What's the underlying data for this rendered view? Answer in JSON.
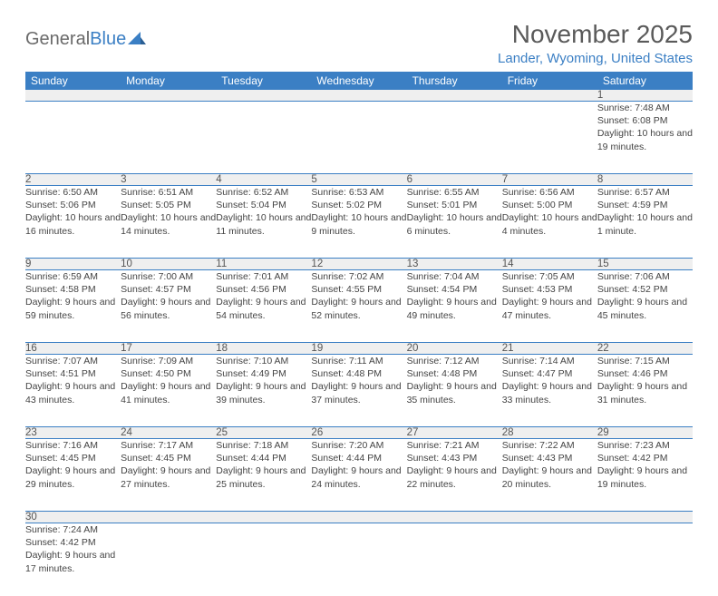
{
  "logo": {
    "part1": "General",
    "part2": "Blue"
  },
  "colors": {
    "header_bg": "#3b7fc4",
    "header_text": "#ffffff",
    "daynum_bg": "#efefef",
    "divider": "#3b7fc4",
    "location": "#3b7fc4",
    "title": "#5a5a5a"
  },
  "title": "November 2025",
  "location": "Lander, Wyoming, United States",
  "day_headers": [
    "Sunday",
    "Monday",
    "Tuesday",
    "Wednesday",
    "Thursday",
    "Friday",
    "Saturday"
  ],
  "weeks": [
    {
      "nums": [
        "",
        "",
        "",
        "",
        "",
        "",
        "1"
      ],
      "cells": [
        null,
        null,
        null,
        null,
        null,
        null,
        {
          "sunrise": "Sunrise: 7:48 AM",
          "sunset": "Sunset: 6:08 PM",
          "daylight": "Daylight: 10 hours and 19 minutes."
        }
      ]
    },
    {
      "nums": [
        "2",
        "3",
        "4",
        "5",
        "6",
        "7",
        "8"
      ],
      "cells": [
        {
          "sunrise": "Sunrise: 6:50 AM",
          "sunset": "Sunset: 5:06 PM",
          "daylight": "Daylight: 10 hours and 16 minutes."
        },
        {
          "sunrise": "Sunrise: 6:51 AM",
          "sunset": "Sunset: 5:05 PM",
          "daylight": "Daylight: 10 hours and 14 minutes."
        },
        {
          "sunrise": "Sunrise: 6:52 AM",
          "sunset": "Sunset: 5:04 PM",
          "daylight": "Daylight: 10 hours and 11 minutes."
        },
        {
          "sunrise": "Sunrise: 6:53 AM",
          "sunset": "Sunset: 5:02 PM",
          "daylight": "Daylight: 10 hours and 9 minutes."
        },
        {
          "sunrise": "Sunrise: 6:55 AM",
          "sunset": "Sunset: 5:01 PM",
          "daylight": "Daylight: 10 hours and 6 minutes."
        },
        {
          "sunrise": "Sunrise: 6:56 AM",
          "sunset": "Sunset: 5:00 PM",
          "daylight": "Daylight: 10 hours and 4 minutes."
        },
        {
          "sunrise": "Sunrise: 6:57 AM",
          "sunset": "Sunset: 4:59 PM",
          "daylight": "Daylight: 10 hours and 1 minute."
        }
      ]
    },
    {
      "nums": [
        "9",
        "10",
        "11",
        "12",
        "13",
        "14",
        "15"
      ],
      "cells": [
        {
          "sunrise": "Sunrise: 6:59 AM",
          "sunset": "Sunset: 4:58 PM",
          "daylight": "Daylight: 9 hours and 59 minutes."
        },
        {
          "sunrise": "Sunrise: 7:00 AM",
          "sunset": "Sunset: 4:57 PM",
          "daylight": "Daylight: 9 hours and 56 minutes."
        },
        {
          "sunrise": "Sunrise: 7:01 AM",
          "sunset": "Sunset: 4:56 PM",
          "daylight": "Daylight: 9 hours and 54 minutes."
        },
        {
          "sunrise": "Sunrise: 7:02 AM",
          "sunset": "Sunset: 4:55 PM",
          "daylight": "Daylight: 9 hours and 52 minutes."
        },
        {
          "sunrise": "Sunrise: 7:04 AM",
          "sunset": "Sunset: 4:54 PM",
          "daylight": "Daylight: 9 hours and 49 minutes."
        },
        {
          "sunrise": "Sunrise: 7:05 AM",
          "sunset": "Sunset: 4:53 PM",
          "daylight": "Daylight: 9 hours and 47 minutes."
        },
        {
          "sunrise": "Sunrise: 7:06 AM",
          "sunset": "Sunset: 4:52 PM",
          "daylight": "Daylight: 9 hours and 45 minutes."
        }
      ]
    },
    {
      "nums": [
        "16",
        "17",
        "18",
        "19",
        "20",
        "21",
        "22"
      ],
      "cells": [
        {
          "sunrise": "Sunrise: 7:07 AM",
          "sunset": "Sunset: 4:51 PM",
          "daylight": "Daylight: 9 hours and 43 minutes."
        },
        {
          "sunrise": "Sunrise: 7:09 AM",
          "sunset": "Sunset: 4:50 PM",
          "daylight": "Daylight: 9 hours and 41 minutes."
        },
        {
          "sunrise": "Sunrise: 7:10 AM",
          "sunset": "Sunset: 4:49 PM",
          "daylight": "Daylight: 9 hours and 39 minutes."
        },
        {
          "sunrise": "Sunrise: 7:11 AM",
          "sunset": "Sunset: 4:48 PM",
          "daylight": "Daylight: 9 hours and 37 minutes."
        },
        {
          "sunrise": "Sunrise: 7:12 AM",
          "sunset": "Sunset: 4:48 PM",
          "daylight": "Daylight: 9 hours and 35 minutes."
        },
        {
          "sunrise": "Sunrise: 7:14 AM",
          "sunset": "Sunset: 4:47 PM",
          "daylight": "Daylight: 9 hours and 33 minutes."
        },
        {
          "sunrise": "Sunrise: 7:15 AM",
          "sunset": "Sunset: 4:46 PM",
          "daylight": "Daylight: 9 hours and 31 minutes."
        }
      ]
    },
    {
      "nums": [
        "23",
        "24",
        "25",
        "26",
        "27",
        "28",
        "29"
      ],
      "cells": [
        {
          "sunrise": "Sunrise: 7:16 AM",
          "sunset": "Sunset: 4:45 PM",
          "daylight": "Daylight: 9 hours and 29 minutes."
        },
        {
          "sunrise": "Sunrise: 7:17 AM",
          "sunset": "Sunset: 4:45 PM",
          "daylight": "Daylight: 9 hours and 27 minutes."
        },
        {
          "sunrise": "Sunrise: 7:18 AM",
          "sunset": "Sunset: 4:44 PM",
          "daylight": "Daylight: 9 hours and 25 minutes."
        },
        {
          "sunrise": "Sunrise: 7:20 AM",
          "sunset": "Sunset: 4:44 PM",
          "daylight": "Daylight: 9 hours and 24 minutes."
        },
        {
          "sunrise": "Sunrise: 7:21 AM",
          "sunset": "Sunset: 4:43 PM",
          "daylight": "Daylight: 9 hours and 22 minutes."
        },
        {
          "sunrise": "Sunrise: 7:22 AM",
          "sunset": "Sunset: 4:43 PM",
          "daylight": "Daylight: 9 hours and 20 minutes."
        },
        {
          "sunrise": "Sunrise: 7:23 AM",
          "sunset": "Sunset: 4:42 PM",
          "daylight": "Daylight: 9 hours and 19 minutes."
        }
      ]
    },
    {
      "nums": [
        "30",
        "",
        "",
        "",
        "",
        "",
        ""
      ],
      "cells": [
        {
          "sunrise": "Sunrise: 7:24 AM",
          "sunset": "Sunset: 4:42 PM",
          "daylight": "Daylight: 9 hours and 17 minutes."
        },
        null,
        null,
        null,
        null,
        null,
        null
      ]
    }
  ]
}
